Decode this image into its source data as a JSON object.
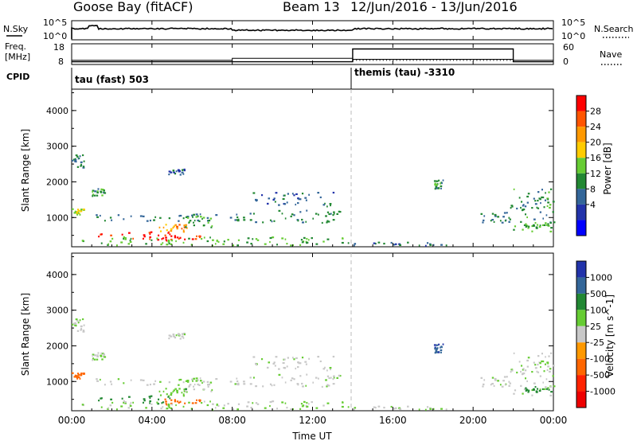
{
  "header": {
    "station": "Goose Bay (fitACF)",
    "beam": "Beam 13",
    "date_range": "12/Jun/2016 - 13/Jun/2016"
  },
  "status_panels": {
    "nsky_label": "N.Sky",
    "nsky_ticks": [
      "10^5",
      "10^0"
    ],
    "nsearch_label": "N.Search",
    "nsearch_ticks": [
      "10^5",
      "10^0"
    ],
    "freq_label_1": "Freq.",
    "freq_label_2": "[MHz]",
    "freq_ticks": [
      "18",
      "8"
    ],
    "nave_label": "Nave",
    "nave_ticks": [
      "60",
      "0"
    ],
    "cpid_label": "CPID",
    "cpid_segments": [
      {
        "start": 0,
        "label": "tau (fast) 503"
      },
      {
        "start": 14,
        "label": "themis (tau) -3310"
      }
    ],
    "nave_steps": [
      {
        "start": 0,
        "end": 14,
        "value": 8
      },
      {
        "start": 14,
        "end": 22,
        "value": 45
      },
      {
        "start": 22,
        "end": 24,
        "value": 8
      }
    ],
    "freq_steps": [
      {
        "start": 0,
        "end": 8,
        "value": 10
      },
      {
        "start": 8,
        "end": 14,
        "value": 11
      },
      {
        "start": 14,
        "end": 22,
        "value": 10.5
      },
      {
        "start": 22,
        "end": 24,
        "value": 10
      }
    ]
  },
  "axes": {
    "x_label": "Time UT",
    "x_ticks": [
      "00:00",
      "04:00",
      "08:00",
      "12:00",
      "16:00",
      "20:00",
      "00:00"
    ],
    "y_label": "Slant Range [km]",
    "y_ticks": [
      "4000",
      "3000",
      "2000",
      "1000"
    ]
  },
  "power_colorbar": {
    "label": "Power [dB]",
    "ticks": [
      "28",
      "24",
      "20",
      "16",
      "12",
      "8",
      "4"
    ],
    "colors": [
      "#ff0000",
      "#ff5500",
      "#ff9900",
      "#ffcc00",
      "#66cc33",
      "#228833",
      "#336699",
      "#2233aa",
      "#0000ff"
    ]
  },
  "velocity_colorbar": {
    "label": "Velocity [m s^-1]",
    "ticks": [
      "1000",
      "500",
      "100",
      "25",
      "-25",
      "-100",
      "-500",
      "-1000"
    ],
    "colors": [
      "#2233aa",
      "#336699",
      "#228833",
      "#66cc33",
      "#c8c8c8",
      "#ff9900",
      "#ff6600",
      "#ff2200",
      "#ee0000"
    ]
  },
  "chart_data": {
    "type": "heatmap",
    "title": "Goose Bay (fitACF) Beam 13 12/Jun/2016 - 13/Jun/2016",
    "xlabel": "Time UT",
    "ylabel": "Slant Range [km]",
    "xlim": [
      0,
      24
    ],
    "ylim": [
      180,
      4600
    ],
    "x_unit": "hours UT",
    "scatter_regions": [
      {
        "t0": 0.0,
        "t1": 0.6,
        "r0": 1050,
        "r1": 1250,
        "power": 16,
        "velocity": -300
      },
      {
        "t0": 0.0,
        "t1": 0.6,
        "r0": 2350,
        "r1": 2750,
        "power": 8,
        "velocity": 20
      },
      {
        "t0": 1.0,
        "t1": 1.6,
        "r0": 1600,
        "r1": 1800,
        "power": 10,
        "velocity": 20
      },
      {
        "t0": 1.2,
        "t1": 5.0,
        "r0": 350,
        "r1": 600,
        "power": 28,
        "velocity": 150
      },
      {
        "t0": 4.6,
        "t1": 6.6,
        "r0": 350,
        "r1": 500,
        "power": 28,
        "velocity": -200
      },
      {
        "t0": 4.2,
        "t1": 5.8,
        "r0": 580,
        "r1": 800,
        "power": 22,
        "velocity": 80
      },
      {
        "t0": 1.0,
        "t1": 8.0,
        "r0": 900,
        "r1": 1100,
        "power": 8,
        "velocity": 20
      },
      {
        "t0": 5.6,
        "t1": 7.0,
        "r0": 700,
        "r1": 1100,
        "power": 12,
        "velocity": 20
      },
      {
        "t0": 8.0,
        "t1": 13.5,
        "r0": 850,
        "r1": 1200,
        "power": 8,
        "velocity": 15
      },
      {
        "t0": 9.0,
        "t1": 13.0,
        "r0": 1300,
        "r1": 1700,
        "power": 6,
        "velocity": 10
      },
      {
        "t0": 4.8,
        "t1": 5.6,
        "r0": 2200,
        "r1": 2350,
        "power": 6,
        "velocity": 10
      },
      {
        "t0": 0.5,
        "t1": 14.0,
        "r0": 200,
        "r1": 450,
        "power": 12,
        "velocity": 30
      },
      {
        "t0": 14.0,
        "t1": 19.0,
        "r0": 200,
        "r1": 300,
        "power": 6,
        "velocity": 20
      },
      {
        "t0": 18.0,
        "t1": 18.5,
        "r0": 1800,
        "r1": 2050,
        "power": 10,
        "velocity": 800
      },
      {
        "t0": 20.3,
        "t1": 21.8,
        "r0": 850,
        "r1": 1150,
        "power": 8,
        "velocity": 15
      },
      {
        "t0": 21.8,
        "t1": 24.0,
        "r0": 600,
        "r1": 1800,
        "power": 10,
        "velocity": 20
      },
      {
        "t0": 22.5,
        "t1": 24.0,
        "r0": 700,
        "r1": 850,
        "power": 12,
        "velocity": 150
      }
    ]
  }
}
